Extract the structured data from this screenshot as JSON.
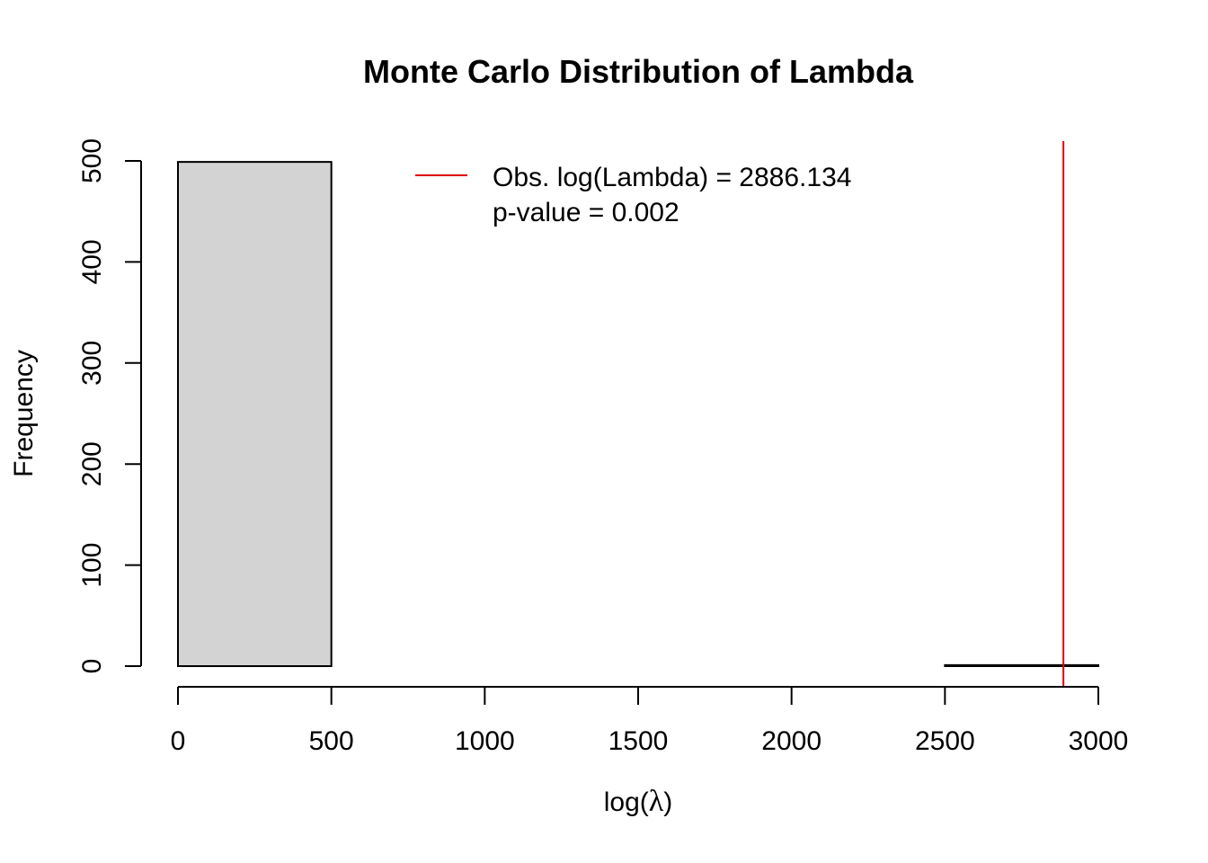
{
  "chart_data": {
    "type": "bar",
    "title": "Monte Carlo Distribution of Lambda",
    "xlabel_prefix": "log(",
    "xlabel_symbol": "λ",
    "xlabel_suffix": ")",
    "ylabel": "Frequency",
    "xlim": [
      0,
      3000
    ],
    "ylim": [
      0,
      500
    ],
    "x_ticks": [
      0,
      500,
      1000,
      1500,
      2000,
      2500,
      3000
    ],
    "y_ticks": [
      0,
      100,
      200,
      300,
      400,
      500
    ],
    "bins": [
      {
        "x0": 0,
        "x1": 500,
        "count": 499
      },
      {
        "x0": 500,
        "x1": 1000,
        "count": 0
      },
      {
        "x0": 1000,
        "x1": 1500,
        "count": 0
      },
      {
        "x0": 1500,
        "x1": 2000,
        "count": 0
      },
      {
        "x0": 2000,
        "x1": 2500,
        "count": 0
      },
      {
        "x0": 2500,
        "x1": 3000,
        "count": 1
      }
    ],
    "observed_value": 2886.134,
    "bar_fill": "#d3d3d3",
    "line_color": "#dd0000",
    "legend": {
      "placement": "top-center",
      "line1": "Obs. log(Lambda) = 2886.134",
      "line2": "p-value = 0.002"
    },
    "grid": false
  }
}
